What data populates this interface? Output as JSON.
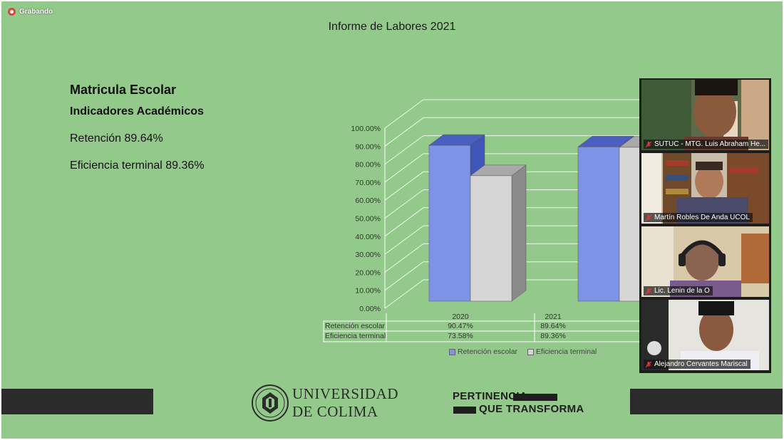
{
  "recording": {
    "label": "Grabando"
  },
  "slide": {
    "title": "Informe de Labores 2021",
    "heading": "Matricula Escolar",
    "subheading": "Indicadores Académicos",
    "line1": "Retención 89.64%",
    "line2": "Eficiencia terminal 89.36%"
  },
  "chart_data": {
    "type": "bar",
    "categories": [
      "2020",
      "2021"
    ],
    "series": [
      {
        "name": "Retención escolar",
        "values": [
          90.47,
          89.64
        ],
        "labels": [
          "90.47%",
          "89.64%"
        ]
      },
      {
        "name": "Eficiencia terminal",
        "values": [
          73.58,
          89.36
        ],
        "labels": [
          "73.58%",
          "89.36%"
        ]
      }
    ],
    "y_ticks": [
      "0.00%",
      "10.00%",
      "20.00%",
      "30.00%",
      "40.00%",
      "50.00%",
      "60.00%",
      "70.00%",
      "80.00%",
      "90.00%",
      "100.00%"
    ],
    "ylim": [
      0,
      100
    ],
    "grid": true,
    "legend": "bottom",
    "colors": {
      "Retención escolar": "#7d93e6",
      "Eficiencia terminal": "#d6d6d6"
    }
  },
  "participants": [
    {
      "name": "SUTUC - MTG. Luis Abraham He...",
      "muted": true
    },
    {
      "name": "Martín  Robles De Anda UCOL",
      "muted": true
    },
    {
      "name": "Lic. Lenin de la O",
      "muted": true
    },
    {
      "name": "Alejandro Cervantes Mariscal",
      "muted": true
    }
  ],
  "footer": {
    "university_line1": "UNIVERSIDAD",
    "university_line2": "DE COLIMA",
    "tagline1": "PERTINENCIA",
    "tagline2": "QUE TRANSFORMA"
  }
}
